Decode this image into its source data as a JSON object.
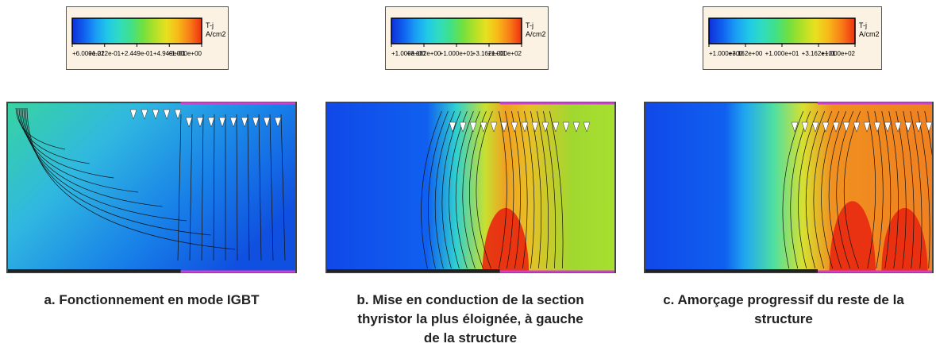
{
  "panels": [
    {
      "colorbar": {
        "unit_top": "T-j",
        "unit_bottom": "A/cm2",
        "ticks": [
          "+6.000e-02",
          "+1.212e-01",
          "+2.449e-01",
          "+4.949e-01",
          "+1.000e+00"
        ]
      },
      "caption": [
        "a. Fonctionnement en mode IGBT"
      ]
    },
    {
      "colorbar": {
        "unit_top": "T-j",
        "unit_bottom": "A/cm2",
        "ticks": [
          "+1.000e+00",
          "+3.162e+00",
          "+1.000e+01",
          "+3.162e+01",
          "+1.000e+02"
        ]
      },
      "caption": [
        "b. Mise en conduction de la section",
        "thyristor la plus éloignée, à gauche",
        "de la structure"
      ]
    },
    {
      "colorbar": {
        "unit_top": "T-j",
        "unit_bottom": "A/cm2",
        "ticks": [
          "+1.000e+00",
          "+3.162e+00",
          "+1.000e+01",
          "+3.162e+01",
          "+1.000e+02"
        ]
      },
      "caption": [
        "c. Amorçage progressif du reste de la",
        "structure"
      ]
    }
  ]
}
